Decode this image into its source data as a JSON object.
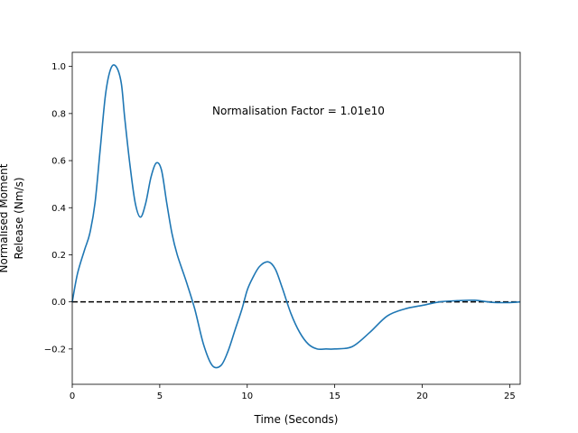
{
  "chart_data": {
    "type": "line",
    "xlabel": "Time (Seconds)",
    "ylabel_line1": "Normalised Moment",
    "ylabel_line2": "Release (Nm/s)",
    "annotation": "Normalisation Factor = 1.01e10",
    "xlim": [
      0,
      25.6
    ],
    "ylim": [
      -0.35,
      1.06
    ],
    "x_ticks": [
      0,
      5,
      10,
      15,
      20,
      25
    ],
    "y_ticks": [
      -0.2,
      0.0,
      0.2,
      0.4,
      0.6,
      0.8,
      1.0
    ],
    "x_tick_labels": [
      "0",
      "5",
      "10",
      "15",
      "20",
      "25"
    ],
    "y_tick_labels": [
      "−0.2",
      "0.0",
      "0.2",
      "0.4",
      "0.6",
      "0.8",
      "1.0"
    ],
    "series_color": "#1f77b4",
    "zero_line": {
      "y": 0,
      "style": "dashed",
      "color": "#000000"
    },
    "series": [
      {
        "x": [
          0,
          0.3,
          0.7,
          1.0,
          1.3,
          1.6,
          1.9,
          2.2,
          2.5,
          2.8,
          3.0,
          3.3,
          3.6,
          3.9,
          4.2,
          4.5,
          4.8,
          5.1,
          5.4,
          5.7,
          6.0,
          6.5,
          7.0,
          7.5,
          8.0,
          8.5,
          8.9,
          9.3,
          9.7,
          10.0,
          10.3,
          10.7,
          11.2,
          11.6,
          12.0,
          12.5,
          13.0,
          13.5,
          14.0,
          14.5,
          15.0,
          16.0,
          17.0,
          18.0,
          19.0,
          20.0,
          21.0,
          22.0,
          23.0,
          24.0,
          25.0,
          25.6
        ],
        "y": [
          0.0,
          0.12,
          0.22,
          0.29,
          0.42,
          0.65,
          0.88,
          0.99,
          1.0,
          0.93,
          0.78,
          0.58,
          0.42,
          0.36,
          0.42,
          0.53,
          0.59,
          0.56,
          0.42,
          0.29,
          0.2,
          0.09,
          -0.03,
          -0.18,
          -0.27,
          -0.27,
          -0.21,
          -0.12,
          -0.03,
          0.05,
          0.1,
          0.15,
          0.17,
          0.14,
          0.06,
          -0.05,
          -0.13,
          -0.18,
          -0.2,
          -0.2,
          -0.2,
          -0.19,
          -0.13,
          -0.06,
          -0.03,
          -0.015,
          0.0,
          0.005,
          0.007,
          -0.002,
          -0.003,
          0.0
        ]
      }
    ]
  }
}
